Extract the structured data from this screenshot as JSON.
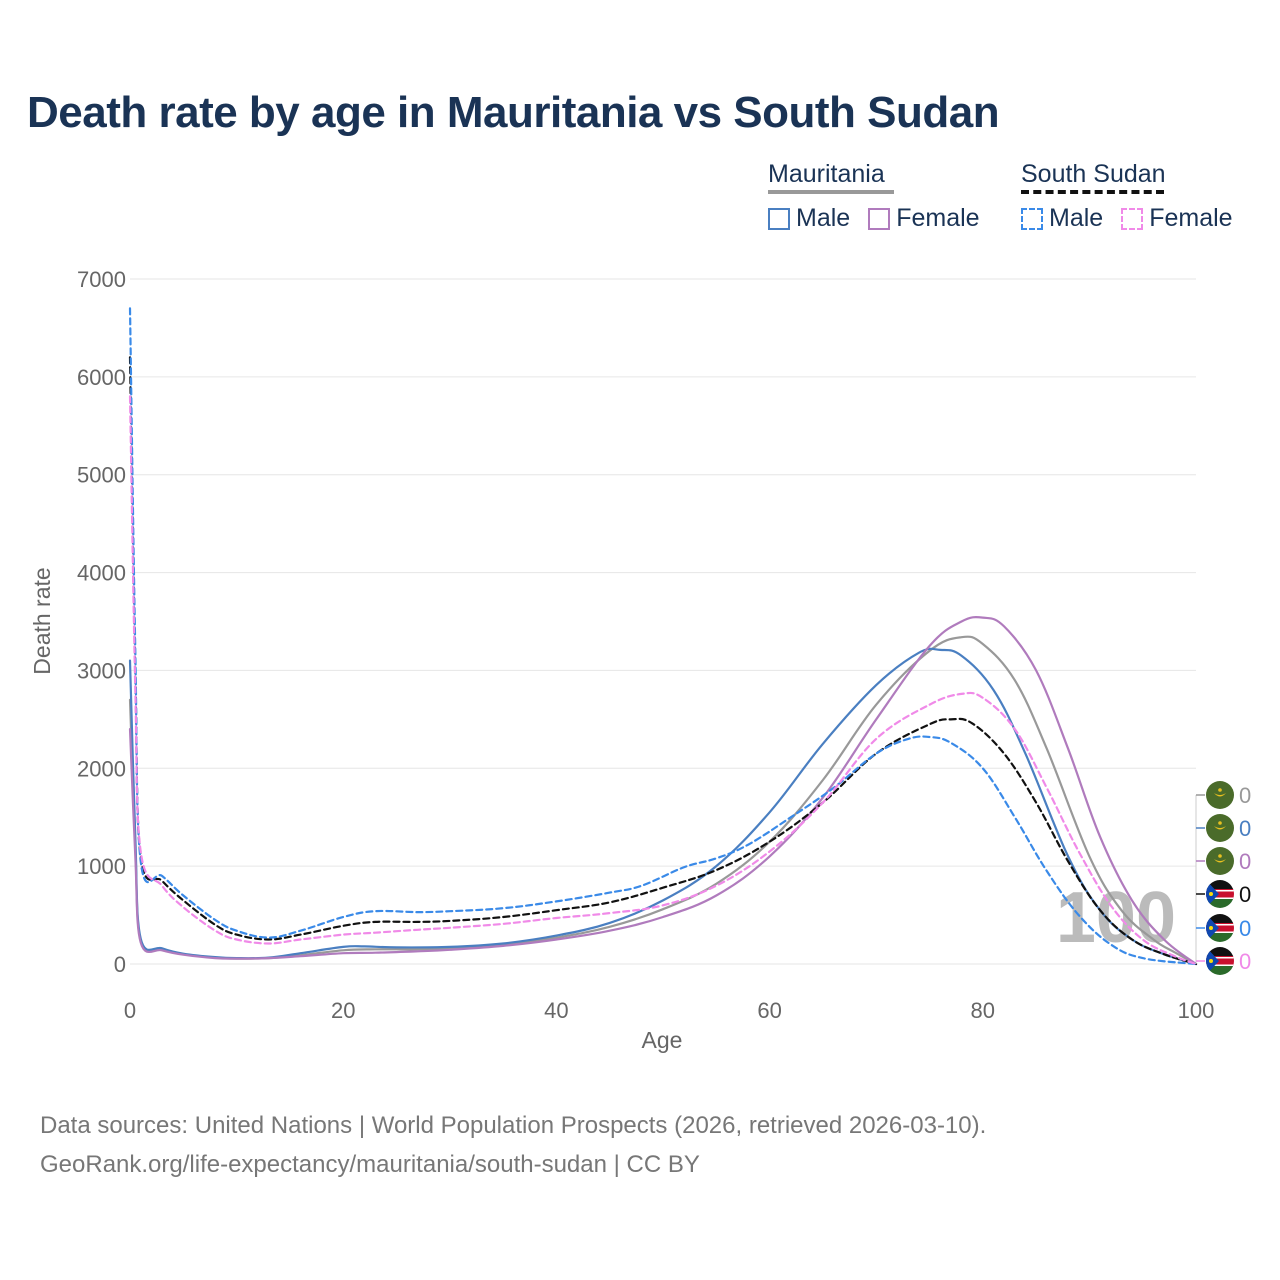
{
  "chart_data": {
    "type": "line",
    "title": "Death rate by age in Mauritania vs South Sudan",
    "xlabel": "Age",
    "ylabel": "Death rate",
    "xlim": [
      0,
      100
    ],
    "ylim": [
      0,
      7000
    ],
    "x_ticks": [
      0,
      20,
      40,
      60,
      80,
      100
    ],
    "y_ticks": [
      0,
      1000,
      2000,
      3000,
      4000,
      5000,
      6000,
      7000
    ],
    "grid": true,
    "legend": {
      "placement": "top-right",
      "groups": [
        {
          "name": "Mauritania",
          "color": "#999999",
          "style": "solid",
          "items": [
            {
              "label": "Male",
              "color": "#4a7fc1"
            },
            {
              "label": "Female",
              "color": "#b07bbd"
            }
          ]
        },
        {
          "name": "South Sudan",
          "color": "#111111",
          "style": "dashed",
          "items": [
            {
              "label": "Male",
              "color": "#3a8ae8"
            },
            {
              "label": "Female",
              "color": "#f08ae8"
            }
          ]
        }
      ]
    },
    "current_age_marker": "100",
    "end_values": [
      "0",
      "0",
      "0",
      "0",
      "0",
      "0"
    ],
    "series": [
      {
        "name": "Mauritania (total)",
        "color": "#999999",
        "dash": false,
        "points": [
          [
            0,
            2700
          ],
          [
            0.5,
            1200
          ],
          [
            1,
            240
          ],
          [
            3,
            150
          ],
          [
            5,
            100
          ],
          [
            8,
            65
          ],
          [
            10,
            55
          ],
          [
            13,
            60
          ],
          [
            16,
            90
          ],
          [
            20,
            140
          ],
          [
            23,
            150
          ],
          [
            27,
            150
          ],
          [
            30,
            160
          ],
          [
            35,
            200
          ],
          [
            40,
            270
          ],
          [
            45,
            380
          ],
          [
            50,
            560
          ],
          [
            55,
            820
          ],
          [
            60,
            1250
          ],
          [
            65,
            1880
          ],
          [
            70,
            2650
          ],
          [
            75,
            3200
          ],
          [
            78,
            3340
          ],
          [
            80,
            3270
          ],
          [
            83,
            2900
          ],
          [
            86,
            2200
          ],
          [
            90,
            1100
          ],
          [
            93,
            550
          ],
          [
            96,
            250
          ],
          [
            98,
            120
          ],
          [
            100,
            0
          ]
        ]
      },
      {
        "name": "Mauritania Male",
        "color": "#4a7fc1",
        "dash": false,
        "points": [
          [
            0,
            3100
          ],
          [
            0.5,
            1300
          ],
          [
            1,
            260
          ],
          [
            3,
            160
          ],
          [
            5,
            105
          ],
          [
            8,
            70
          ],
          [
            10,
            60
          ],
          [
            13,
            65
          ],
          [
            16,
            110
          ],
          [
            20,
            175
          ],
          [
            22,
            180
          ],
          [
            25,
            170
          ],
          [
            30,
            175
          ],
          [
            35,
            210
          ],
          [
            40,
            290
          ],
          [
            45,
            420
          ],
          [
            50,
            650
          ],
          [
            55,
            1000
          ],
          [
            60,
            1550
          ],
          [
            65,
            2250
          ],
          [
            70,
            2850
          ],
          [
            74,
            3180
          ],
          [
            76,
            3210
          ],
          [
            78,
            3150
          ],
          [
            81,
            2800
          ],
          [
            84,
            2150
          ],
          [
            88,
            1100
          ],
          [
            91,
            550
          ],
          [
            94,
            250
          ],
          [
            97,
            100
          ],
          [
            100,
            0
          ]
        ]
      },
      {
        "name": "Mauritania Female",
        "color": "#b07bbd",
        "dash": false,
        "points": [
          [
            0,
            2400
          ],
          [
            0.5,
            1100
          ],
          [
            1,
            220
          ],
          [
            3,
            140
          ],
          [
            5,
            95
          ],
          [
            8,
            60
          ],
          [
            10,
            55
          ],
          [
            13,
            60
          ],
          [
            16,
            80
          ],
          [
            20,
            110
          ],
          [
            23,
            115
          ],
          [
            27,
            130
          ],
          [
            30,
            145
          ],
          [
            35,
            185
          ],
          [
            40,
            250
          ],
          [
            45,
            340
          ],
          [
            50,
            480
          ],
          [
            55,
            700
          ],
          [
            60,
            1100
          ],
          [
            65,
            1700
          ],
          [
            70,
            2500
          ],
          [
            75,
            3250
          ],
          [
            78,
            3500
          ],
          [
            80,
            3540
          ],
          [
            82,
            3450
          ],
          [
            85,
            3000
          ],
          [
            88,
            2200
          ],
          [
            91,
            1300
          ],
          [
            94,
            650
          ],
          [
            97,
            250
          ],
          [
            100,
            0
          ]
        ]
      },
      {
        "name": "South Sudan (total)",
        "color": "#111111",
        "dash": true,
        "points": [
          [
            0,
            6200
          ],
          [
            0.5,
            3000
          ],
          [
            1,
            1100
          ],
          [
            3,
            850
          ],
          [
            5,
            650
          ],
          [
            8,
            400
          ],
          [
            10,
            300
          ],
          [
            13,
            250
          ],
          [
            16,
            300
          ],
          [
            20,
            390
          ],
          [
            23,
            430
          ],
          [
            27,
            430
          ],
          [
            30,
            440
          ],
          [
            35,
            480
          ],
          [
            40,
            550
          ],
          [
            45,
            630
          ],
          [
            50,
            780
          ],
          [
            55,
            960
          ],
          [
            60,
            1250
          ],
          [
            65,
            1650
          ],
          [
            70,
            2150
          ],
          [
            75,
            2450
          ],
          [
            77,
            2500
          ],
          [
            79,
            2460
          ],
          [
            82,
            2150
          ],
          [
            85,
            1650
          ],
          [
            88,
            1050
          ],
          [
            91,
            550
          ],
          [
            94,
            250
          ],
          [
            97,
            100
          ],
          [
            100,
            0
          ]
        ]
      },
      {
        "name": "South Sudan Male",
        "color": "#3a8ae8",
        "dash": true,
        "points": [
          [
            0,
            6700
          ],
          [
            0.5,
            3200
          ],
          [
            1,
            1050
          ],
          [
            3,
            900
          ],
          [
            5,
            700
          ],
          [
            8,
            450
          ],
          [
            10,
            340
          ],
          [
            13,
            270
          ],
          [
            16,
            340
          ],
          [
            20,
            480
          ],
          [
            23,
            540
          ],
          [
            27,
            530
          ],
          [
            30,
            540
          ],
          [
            35,
            570
          ],
          [
            40,
            640
          ],
          [
            45,
            730
          ],
          [
            48,
            800
          ],
          [
            52,
            990
          ],
          [
            55,
            1080
          ],
          [
            58,
            1220
          ],
          [
            62,
            1500
          ],
          [
            66,
            1800
          ],
          [
            70,
            2150
          ],
          [
            73,
            2300
          ],
          [
            75,
            2320
          ],
          [
            77,
            2260
          ],
          [
            80,
            2000
          ],
          [
            83,
            1500
          ],
          [
            86,
            950
          ],
          [
            89,
            500
          ],
          [
            92,
            200
          ],
          [
            95,
            60
          ],
          [
            100,
            0
          ]
        ]
      },
      {
        "name": "South Sudan Female",
        "color": "#f08ae8",
        "dash": true,
        "points": [
          [
            0,
            5800
          ],
          [
            0.5,
            2800
          ],
          [
            1,
            1150
          ],
          [
            3,
            800
          ],
          [
            5,
            580
          ],
          [
            8,
            340
          ],
          [
            10,
            250
          ],
          [
            13,
            210
          ],
          [
            16,
            250
          ],
          [
            20,
            300
          ],
          [
            23,
            320
          ],
          [
            27,
            350
          ],
          [
            30,
            370
          ],
          [
            35,
            410
          ],
          [
            40,
            470
          ],
          [
            45,
            520
          ],
          [
            50,
            600
          ],
          [
            55,
            800
          ],
          [
            60,
            1150
          ],
          [
            65,
            1650
          ],
          [
            70,
            2300
          ],
          [
            75,
            2650
          ],
          [
            78,
            2760
          ],
          [
            80,
            2720
          ],
          [
            83,
            2400
          ],
          [
            86,
            1800
          ],
          [
            89,
            1150
          ],
          [
            92,
            600
          ],
          [
            95,
            250
          ],
          [
            98,
            80
          ],
          [
            100,
            0
          ]
        ]
      }
    ]
  }
}
